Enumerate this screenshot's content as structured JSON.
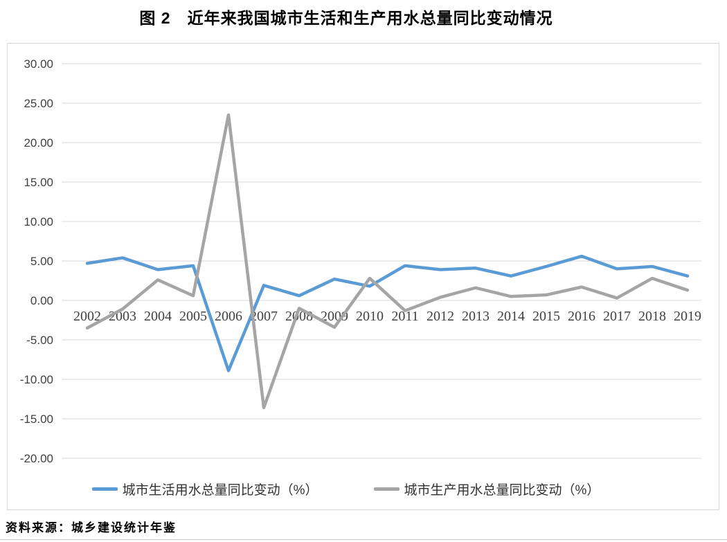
{
  "title": "图 2　近年来我国城市生活和生产用水总量同比变动情况",
  "source_note": "资料来源：城乡建设统计年鉴",
  "colors": {
    "series_domestic": "#5B9BD5",
    "series_production": "#A5A5A5",
    "gridline": "#D9D9D9",
    "axis_text": "#404040"
  },
  "chart_data": {
    "type": "line",
    "title": "图 2　近年来我国城市生活和生产用水总量同比变动情况",
    "categories": [
      "2002",
      "2003",
      "2004",
      "2005",
      "2006",
      "2007",
      "2008",
      "2009",
      "2010",
      "2011",
      "2012",
      "2013",
      "2014",
      "2015",
      "2016",
      "2017",
      "2018",
      "2019"
    ],
    "series": [
      {
        "name": "城市生活用水总量同比变动（%）",
        "color": "#5B9BD5",
        "values": [
          4.7,
          5.4,
          3.9,
          4.4,
          -8.9,
          1.9,
          0.6,
          2.7,
          1.8,
          4.4,
          3.9,
          4.1,
          3.1,
          4.3,
          5.6,
          4.0,
          4.3,
          3.1
        ]
      },
      {
        "name": "城市生产用水总量同比变动（%）",
        "color": "#A5A5A5",
        "values": [
          -3.5,
          -1.1,
          2.6,
          0.6,
          23.5,
          -13.6,
          -1.0,
          -3.4,
          2.8,
          -1.3,
          0.4,
          1.6,
          0.5,
          0.7,
          1.7,
          0.3,
          2.8,
          1.3
        ]
      }
    ],
    "xlabel": "",
    "ylabel": "",
    "ylim": [
      -20,
      30
    ],
    "ytick_step": 5,
    "ytick_labels": [
      "30.00",
      "25.00",
      "20.00",
      "15.00",
      "10.00",
      "5.00",
      "0.00",
      "-5.00",
      "-10.00",
      "-15.00",
      "-20.00"
    ],
    "grid": true,
    "legend_position": "bottom"
  }
}
